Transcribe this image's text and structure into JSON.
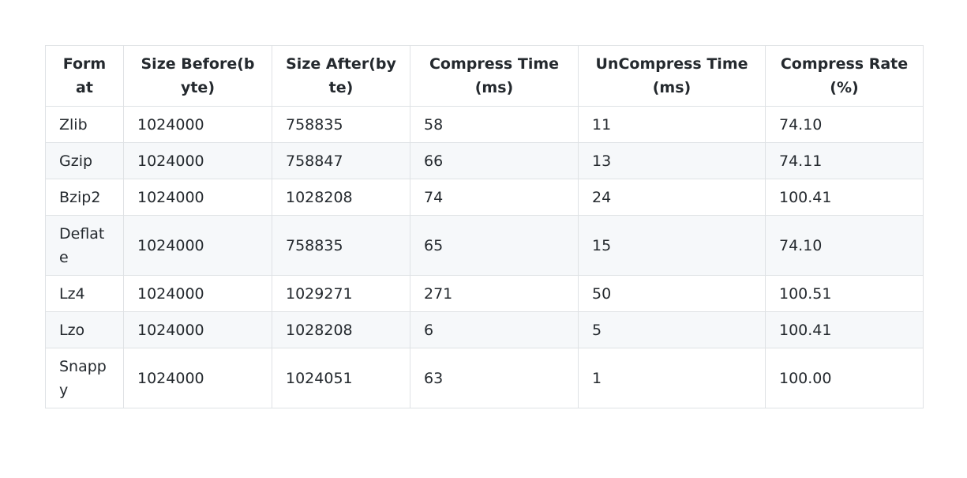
{
  "table": {
    "headers": [
      "Format",
      "Size Before(byte)",
      "Size After(byte)",
      "Compress Time (ms)",
      "UnCompress Time (ms)",
      "Compress Rate (%)"
    ],
    "rows": [
      [
        "Zlib",
        "1024000",
        "758835",
        "58",
        "11",
        "74.10"
      ],
      [
        "Gzip",
        "1024000",
        "758847",
        "66",
        "13",
        "74.11"
      ],
      [
        "Bzip2",
        "1024000",
        "1028208",
        "74",
        "24",
        "100.41"
      ],
      [
        "Deflate",
        "1024000",
        "758835",
        "65",
        "15",
        "74.10"
      ],
      [
        "Lz4",
        "1024000",
        "1029271",
        "271",
        "50",
        "100.51"
      ],
      [
        "Lzo",
        "1024000",
        "1028208",
        "6",
        "5",
        "100.41"
      ],
      [
        "Snappy",
        "1024000",
        "1024051",
        "63",
        "1",
        "100.00"
      ]
    ]
  }
}
